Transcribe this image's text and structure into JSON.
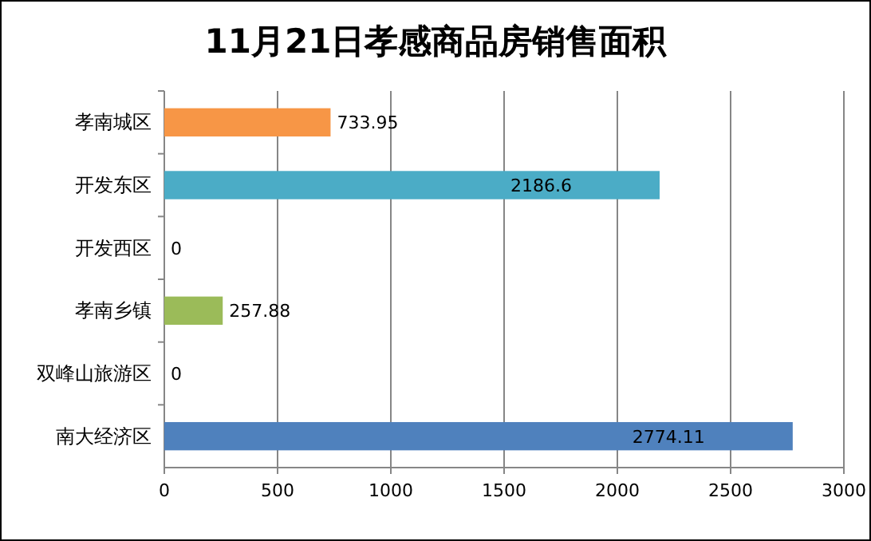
{
  "chart_data": {
    "type": "bar",
    "orientation": "horizontal",
    "title": "11月21日孝感商品房销售面积",
    "categories": [
      "孝南城区",
      "开发东区",
      "开发西区",
      "孝南乡镇",
      "双峰山旅游区",
      "南大经济区"
    ],
    "values": [
      733.95,
      2186.6,
      0,
      257.88,
      0,
      2774.11
    ],
    "colors": [
      "#f79646",
      "#4bacc6",
      "#8064a2",
      "#9bbb59",
      "#c0504d",
      "#4f81bd"
    ],
    "xlim": [
      0,
      3000
    ],
    "xticks": [
      0,
      500,
      1000,
      1500,
      2000,
      2500,
      3000
    ],
    "grid": "x",
    "data_labels": true
  }
}
